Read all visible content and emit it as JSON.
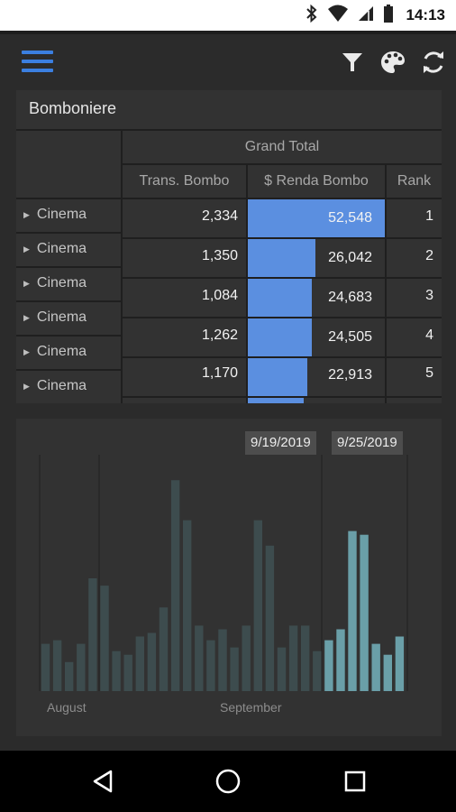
{
  "status_bar": {
    "time": "14:13"
  },
  "app_bar": {
    "menu_icon": "hamburger-menu-icon",
    "filter_icon": "filter-icon",
    "theme_icon": "palette-icon",
    "refresh_icon": "refresh-icon",
    "accent": "#3b7fe0"
  },
  "pivot": {
    "title": "Bomboniere",
    "group_header": "Grand Total",
    "columns": [
      "Trans. Bombo",
      "$ Renda Bombo",
      "Rank"
    ],
    "rows": [
      {
        "label": "Cinema",
        "trans": "2,334",
        "renda": "52,548",
        "rank": "1",
        "renda_value": 52548
      },
      {
        "label": "Cinema",
        "trans": "1,350",
        "renda": "26,042",
        "rank": "2",
        "renda_value": 26042
      },
      {
        "label": "Cinema",
        "trans": "1,084",
        "renda": "24,683",
        "rank": "3",
        "renda_value": 24683
      },
      {
        "label": "Cinema",
        "trans": "1,262",
        "renda": "24,505",
        "rank": "4",
        "renda_value": 24505
      },
      {
        "label": "Cinema",
        "trans": "1,170",
        "renda": "22,913",
        "rank": "5",
        "renda_value": 22913
      },
      {
        "label": "Cinema",
        "trans": "",
        "renda": "",
        "rank": "",
        "renda_value": 21500
      }
    ],
    "bar_color": "#5b8fe0"
  },
  "chart_data": {
    "type": "bar",
    "x_labels": [
      "August",
      "September"
    ],
    "range_start": "9/19/2019",
    "range_end": "9/25/2019",
    "values": [
      13,
      14,
      8,
      13,
      31,
      29,
      11,
      10,
      15,
      16,
      23,
      58,
      47,
      18,
      14,
      17,
      12,
      18,
      47,
      40,
      12,
      18,
      18,
      11,
      14,
      17,
      44,
      43,
      13,
      10,
      15
    ],
    "selected_from_index": 24,
    "ylim": [
      0,
      65
    ],
    "colors": {
      "bar": "#3d4c4e",
      "selected_bar": "#6a9fa8"
    }
  },
  "nav_bar": {
    "back_icon": "back-triangle-icon",
    "home_icon": "home-circle-icon",
    "recents_icon": "recents-square-icon"
  }
}
